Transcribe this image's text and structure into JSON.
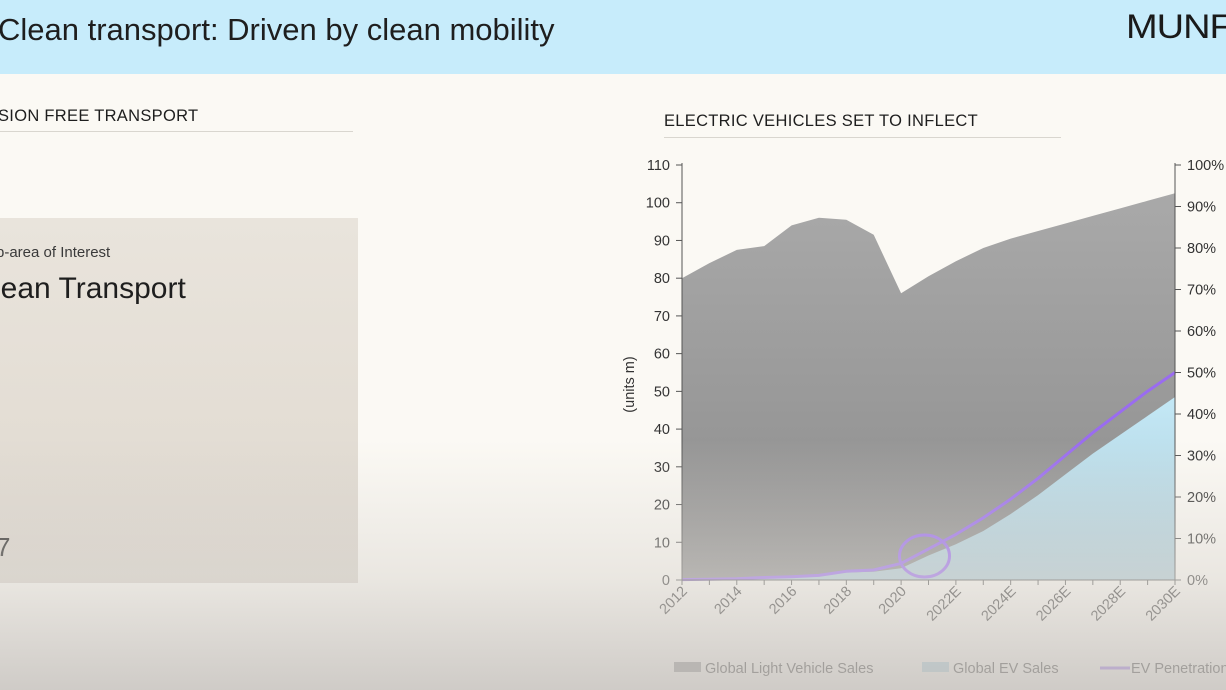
{
  "header": {
    "title": "Clean transport: Driven by clean mobility",
    "logo_text": "MUNF"
  },
  "left": {
    "section_label": "SION FREE TRANSPORT",
    "card": {
      "subtitle": "b-area of Interest",
      "title": "lean Transport",
      "mark": "7"
    }
  },
  "right": {
    "section_label": "ELECTRIC VEHICLES SET TO INFLECT"
  },
  "colors": {
    "header_bg": "#c7ecfb",
    "light_vehicle_area": "#a2a2a2",
    "ev_sales_area": "#c3e8f6",
    "ev_penetration_line": "#9a6cf0",
    "highlight_circle": "#9a6cf0"
  },
  "chart_data": {
    "type": "area",
    "title": "ELECTRIC VEHICLES SET TO INFLECT",
    "ylabel": "(units m)",
    "ylim": [
      0,
      110
    ],
    "y_ticks": [
      0,
      10,
      20,
      30,
      40,
      50,
      60,
      70,
      80,
      90,
      100,
      110
    ],
    "y2lim": [
      0,
      100
    ],
    "y2_ticks": [
      "0%",
      "10%",
      "20%",
      "30%",
      "40%",
      "50%",
      "60%",
      "70%",
      "80%",
      "90%",
      "100%"
    ],
    "x": [
      "2012",
      "2013",
      "2014",
      "2015",
      "2016",
      "2017",
      "2018",
      "2019",
      "2020",
      "2021",
      "2022E",
      "2023E",
      "2024E",
      "2025E",
      "2026E",
      "2027E",
      "2028E",
      "2029E",
      "2030E"
    ],
    "x_tick_labels": [
      "2012",
      "2014",
      "2016",
      "2018",
      "2020",
      "2022E",
      "2024E",
      "2026E",
      "2028E",
      "2030E"
    ],
    "series": [
      {
        "name": "Global Light Vehicle Sales",
        "type": "area",
        "axis": "left",
        "values": [
          80,
          84,
          87.5,
          88.5,
          94,
          96,
          95.5,
          91.5,
          76,
          80.5,
          84.5,
          88,
          90.5,
          92.5,
          94.5,
          96.5,
          98.5,
          100.5,
          102.5
        ]
      },
      {
        "name": "Global EV Sales",
        "type": "area",
        "axis": "left",
        "values": [
          0.1,
          0.2,
          0.3,
          0.5,
          0.8,
          1.2,
          2.0,
          2.2,
          3.1,
          6.5,
          9.5,
          13,
          17.5,
          22.5,
          28,
          33.5,
          38.5,
          43.5,
          48.5
        ]
      },
      {
        "name": "EV Penetration",
        "type": "line",
        "axis": "right",
        "values": [
          0.1,
          0.2,
          0.3,
          0.6,
          0.8,
          1.1,
          2.1,
          2.4,
          4.0,
          7.5,
          11,
          15,
          19.5,
          24.5,
          30,
          35.5,
          40.5,
          45.5,
          50
        ]
      }
    ],
    "annotation": {
      "type": "circle",
      "x": "2021",
      "value": 6.5
    },
    "legend_position": "bottom",
    "grid": false
  }
}
